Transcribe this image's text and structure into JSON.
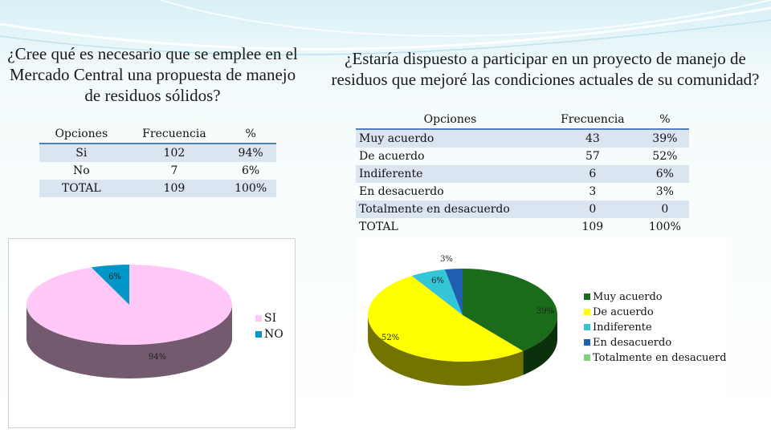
{
  "left": {
    "question": "¿Cree qué es necesario que se emplee en el Mercado Central una propuesta de manejo de residuos sólidos?",
    "table": {
      "headers": [
        "Opciones",
        "Frecuencia",
        "%"
      ],
      "rows": [
        [
          "Si",
          "102",
          "94%"
        ],
        [
          "No",
          "7",
          "6%"
        ],
        [
          "TOTAL",
          "109",
          "100%"
        ]
      ]
    }
  },
  "right": {
    "question": "¿Estaría dispuesto a participar en un proyecto de manejo de residuos que mejoré las condiciones actuales de su comunidad?",
    "table": {
      "headers": [
        "Opciones",
        "Frecuencia",
        "%"
      ],
      "rows": [
        [
          "Muy acuerdo",
          "43",
          "39%"
        ],
        [
          "De acuerdo",
          "57",
          "52%"
        ],
        [
          "Indiferente",
          "6",
          "6%"
        ],
        [
          "En desacuerdo",
          "3",
          "3%"
        ],
        [
          "Totalmente en desacuerdo",
          "0",
          "0"
        ],
        [
          "TOTAL",
          "109",
          "100%"
        ]
      ]
    }
  },
  "chart_data": [
    {
      "type": "pie",
      "style": "3d",
      "categories": [
        "SI",
        "NO"
      ],
      "values": [
        94,
        6
      ],
      "data_labels": [
        "94%",
        "6%"
      ],
      "colors": [
        "#ffc8f6",
        "#0096c8"
      ],
      "legend_placement": "right"
    },
    {
      "type": "pie",
      "style": "3d",
      "categories": [
        "Muy acuerdo",
        "De acuerdo",
        "Indiferente",
        "En desacuerdo",
        "Totalmente en desacuerdo"
      ],
      "values": [
        39,
        52,
        6,
        3,
        0
      ],
      "data_labels": [
        "39%",
        "52%",
        "6%",
        "3%",
        ""
      ],
      "colors": [
        "#1a6b1a",
        "#ffff00",
        "#33c6d6",
        "#1f5fb0",
        "#7ed37e"
      ],
      "legend_placement": "right"
    }
  ]
}
